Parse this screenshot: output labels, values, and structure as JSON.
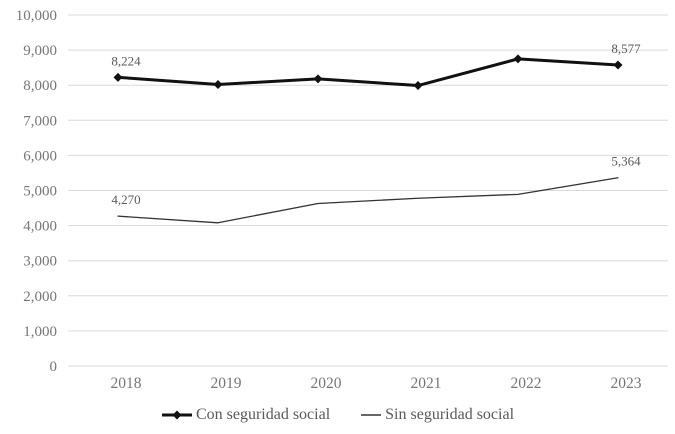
{
  "chart_data": {
    "type": "line",
    "title": "",
    "xlabel": "",
    "ylabel": "",
    "x": [
      "2018",
      "2019",
      "2020",
      "2021",
      "2022",
      "2023"
    ],
    "series": [
      {
        "name": "Con seguridad social",
        "values": [
          8224,
          8020,
          8180,
          7990,
          8750,
          8577
        ],
        "color": "#111111",
        "stroke_width": 3,
        "marker": "diamond"
      },
      {
        "name": "Sin seguridad social",
        "values": [
          4270,
          4080,
          4630,
          4780,
          4890,
          5364
        ],
        "color": "#333333",
        "stroke_width": 1.3,
        "marker": "none"
      }
    ],
    "point_labels": [
      {
        "series": 0,
        "index": 0,
        "text": "8,224"
      },
      {
        "series": 0,
        "index": 5,
        "text": "8,577"
      },
      {
        "series": 1,
        "index": 0,
        "text": "4,270"
      },
      {
        "series": 1,
        "index": 5,
        "text": "5,364"
      }
    ],
    "ylim": [
      0,
      10000
    ],
    "yticks": [
      {
        "value": 0,
        "label": "0"
      },
      {
        "value": 1000,
        "label": "1,000"
      },
      {
        "value": 2000,
        "label": "2,000"
      },
      {
        "value": 3000,
        "label": "3,000"
      },
      {
        "value": 4000,
        "label": "4,000"
      },
      {
        "value": 5000,
        "label": "5,000"
      },
      {
        "value": 6000,
        "label": "6,000"
      },
      {
        "value": 7000,
        "label": "7,000"
      },
      {
        "value": 8000,
        "label": "8,000"
      },
      {
        "value": 9000,
        "label": "9,000"
      },
      {
        "value": 10000,
        "label": "10,000"
      }
    ],
    "grid": true,
    "legend_position": "bottom",
    "colors": {
      "background": "#ffffff",
      "gridline": "#d9d9d9",
      "tick_text": "#767676",
      "point_label_text": "#595959",
      "legend_text": "#595959"
    }
  }
}
